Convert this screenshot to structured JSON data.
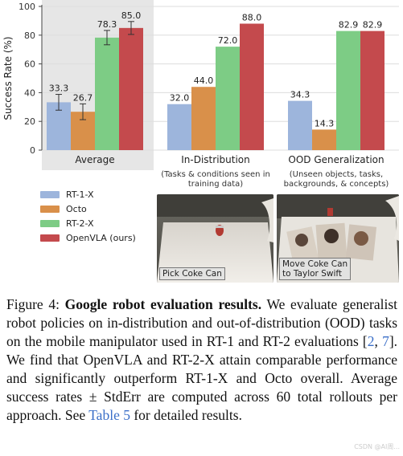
{
  "chart_data": {
    "type": "bar",
    "ylabel": "Success Rate (%)",
    "ylim": [
      0,
      100
    ],
    "yticks": [
      0,
      20,
      40,
      60,
      80,
      100
    ],
    "grid": true,
    "groups": [
      {
        "label": "Average",
        "sublabel": "",
        "highlighted": true,
        "values": [
          33.3,
          26.7,
          78.3,
          85.0
        ],
        "labels": [
          "33.3",
          "26.7",
          "78.3",
          "85.0"
        ],
        "errors": [
          5.5,
          5.5,
          5.0,
          4.5
        ]
      },
      {
        "label": "In-Distribution",
        "sublabel": "(Tasks & conditions seen in\ntraining data)",
        "highlighted": false,
        "values": [
          32.0,
          44.0,
          72.0,
          88.0
        ],
        "labels": [
          "32.0",
          "44.0",
          "72.0",
          "88.0"
        ]
      },
      {
        "label": "OOD Generalization",
        "sublabel": "(Unseen objects, tasks,\nbackgrounds, & concepts)",
        "highlighted": false,
        "values": [
          34.3,
          14.3,
          82.9,
          82.9
        ],
        "labels": [
          "34.3",
          "14.3",
          "82.9",
          "82.9"
        ]
      }
    ],
    "series": [
      {
        "name": "RT-1-X",
        "color": "#9db5dc"
      },
      {
        "name": "Octo",
        "color": "#d9904a"
      },
      {
        "name": "RT-2-X",
        "color": "#7dcc85"
      },
      {
        "name": "OpenVLA (ours)",
        "color": "#c44a4d"
      }
    ],
    "legend_position": "bottom-left"
  },
  "photos": [
    {
      "caption": "Pick Coke Can"
    },
    {
      "caption": "Move Coke Can\nto Taylor Swift"
    }
  ],
  "caption": {
    "prefix": "Figure 4: ",
    "title": "Google robot evaluation results.",
    "text1": " We evaluate generalist robot policies on in-distribution and out-of-distribution (OOD) tasks on the mobile manipulator used in RT-1 and RT-2 evaluations [",
    "ref1": "2",
    "sep": ", ",
    "ref2": "7",
    "text2": "]. We find that OpenVLA and RT-2-X attain comparable performance and significantly outperform RT-1-X and Octo overall. Average success rates ± StdErr are computed across 60 total rollouts per approach. See ",
    "ref3": "Table 5",
    "text3": " for detailed results."
  },
  "watermark": "CSDN @AI周..."
}
